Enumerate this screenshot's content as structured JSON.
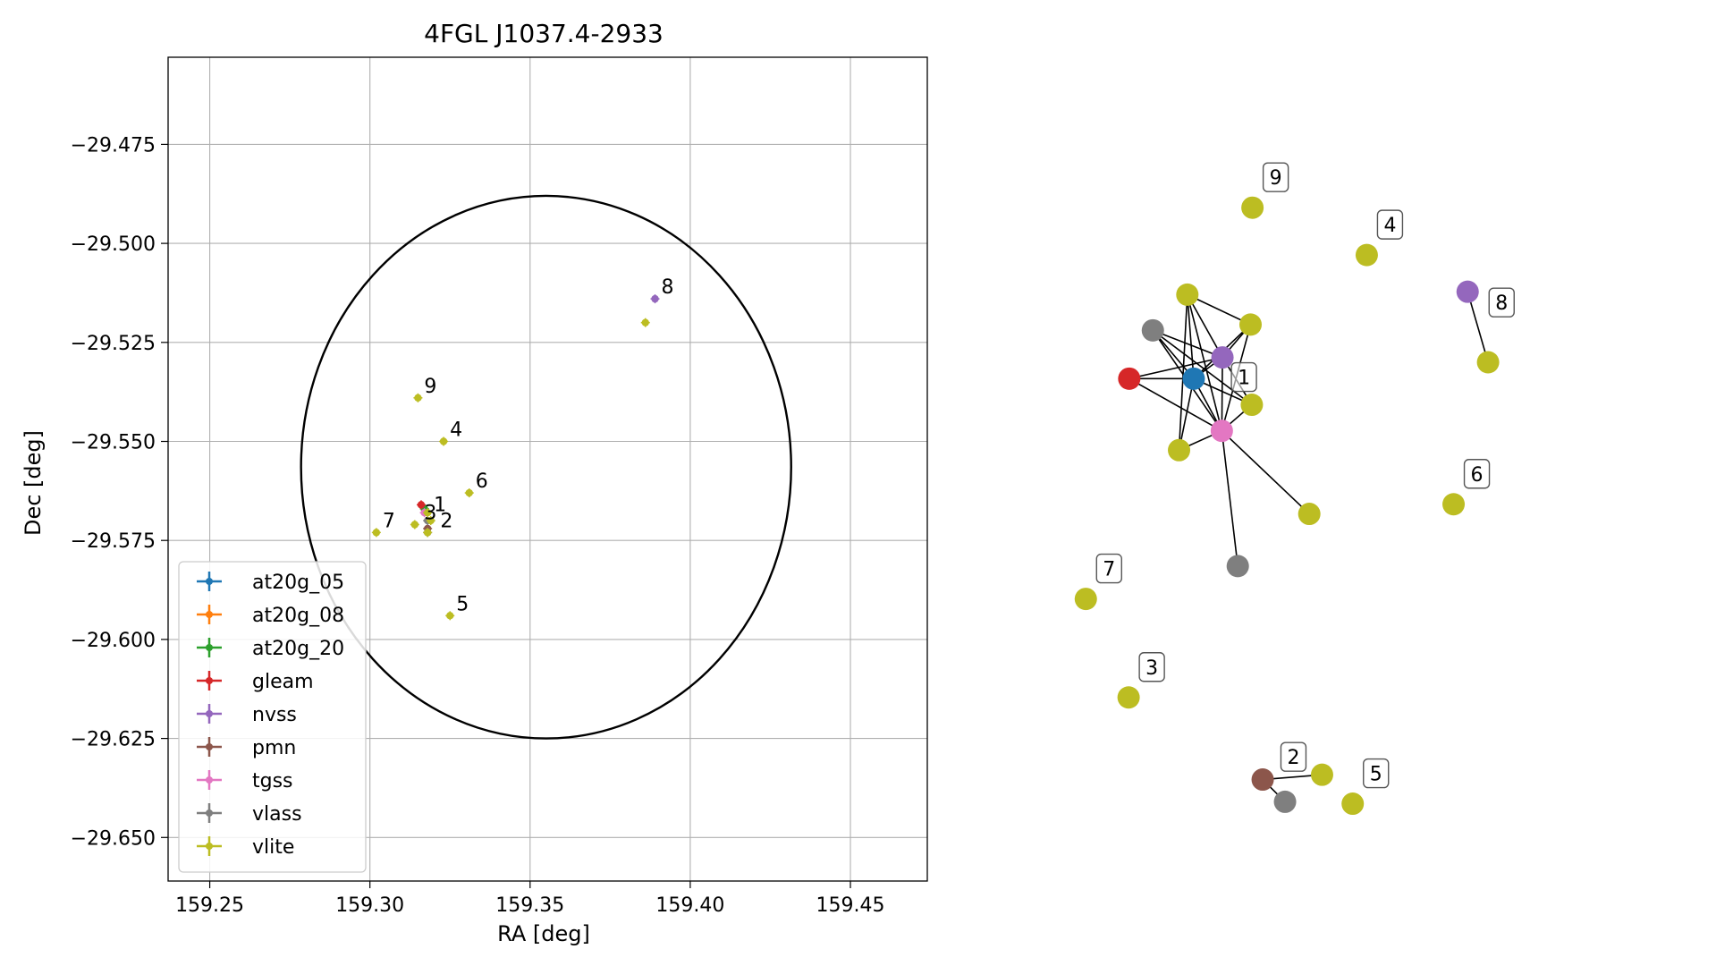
{
  "chart_data": [
    {
      "type": "scatter",
      "title": "4FGL J1037.4-2933",
      "xlabel": "RA [deg]",
      "ylabel": "Dec [deg]",
      "xlim": [
        159.237,
        159.474
      ],
      "ylim": [
        -29.661,
        -29.453
      ],
      "xticks": [
        159.25,
        159.3,
        159.35,
        159.4,
        159.45
      ],
      "xtick_labels": [
        "159.25",
        "159.30",
        "159.35",
        "159.40",
        "159.45"
      ],
      "yticks": [
        -29.475,
        -29.5,
        -29.525,
        -29.55,
        -29.575,
        -29.6,
        -29.625,
        -29.65
      ],
      "ytick_labels": [
        "−29.475",
        "−29.500",
        "−29.525",
        "−29.550",
        "−29.575",
        "−29.600",
        "−29.625",
        "−29.650"
      ],
      "grid": true,
      "legend_position": "lower-left",
      "ellipse": {
        "center": [
          159.355,
          -29.5565
        ],
        "semi_ra": 0.0765,
        "semi_dec": 0.0685
      },
      "series": [
        {
          "name": "at20g_05",
          "color": "#1f77b4",
          "points": [
            [
              159.317,
              -29.567
            ]
          ]
        },
        {
          "name": "at20g_08",
          "color": "#ff7f0e",
          "points": [
            [
              159.317,
              -29.567
            ]
          ]
        },
        {
          "name": "at20g_20",
          "color": "#2ca02c",
          "points": [
            [
              159.317,
              -29.567
            ]
          ]
        },
        {
          "name": "gleam",
          "color": "#d62728",
          "points": [
            [
              159.316,
              -29.566
            ]
          ]
        },
        {
          "name": "nvss",
          "color": "#9467bd",
          "points": [
            [
              159.389,
              -29.514
            ]
          ]
        },
        {
          "name": "pmn",
          "color": "#8c564b",
          "points": [
            [
              159.318,
              -29.572
            ]
          ]
        },
        {
          "name": "tgss",
          "color": "#e377c2",
          "points": [
            [
              159.317,
              -29.568
            ]
          ]
        },
        {
          "name": "vlass",
          "color": "#7f7f7f",
          "points": [
            [
              159.318,
              -29.57
            ],
            [
              159.318,
              -29.573
            ]
          ]
        },
        {
          "name": "vlite",
          "color": "#bcbd22",
          "points": [
            [
              159.318,
              -29.568
            ],
            [
              159.319,
              -29.57
            ],
            [
              159.314,
              -29.571
            ],
            [
              159.323,
              -29.55
            ],
            [
              159.325,
              -29.594
            ],
            [
              159.331,
              -29.563
            ],
            [
              159.302,
              -29.573
            ],
            [
              159.386,
              -29.52
            ],
            [
              159.315,
              -29.539
            ],
            [
              159.318,
              -29.573
            ]
          ]
        }
      ],
      "annotations": [
        {
          "text": "1",
          "x": 159.318,
          "y": -29.569
        },
        {
          "text": "2",
          "x": 159.32,
          "y": -29.573
        },
        {
          "text": "3",
          "x": 159.315,
          "y": -29.571
        },
        {
          "text": "4",
          "x": 159.323,
          "y": -29.55
        },
        {
          "text": "5",
          "x": 159.325,
          "y": -29.594
        },
        {
          "text": "6",
          "x": 159.331,
          "y": -29.563
        },
        {
          "text": "7",
          "x": 159.302,
          "y": -29.573
        },
        {
          "text": "8",
          "x": 159.389,
          "y": -29.514
        },
        {
          "text": "9",
          "x": 159.315,
          "y": -29.539
        }
      ]
    },
    {
      "type": "network",
      "nodes": [
        {
          "id": "c1",
          "color": "#bcbd22",
          "x": 0.172,
          "y": 0.305
        },
        {
          "id": "c2",
          "color": "#7f7f7f",
          "x": 0.118,
          "y": 0.342
        },
        {
          "id": "c3",
          "color": "#9467bd",
          "x": 0.227,
          "y": 0.37
        },
        {
          "id": "c4",
          "color": "#bcbd22",
          "x": 0.271,
          "y": 0.336
        },
        {
          "id": "c5",
          "color": "#d62728",
          "x": 0.081,
          "y": 0.392
        },
        {
          "id": "c6",
          "color": "#1f77b4",
          "x": 0.182,
          "y": 0.392
        },
        {
          "id": "c7",
          "color": "#bcbd22",
          "x": 0.273,
          "y": 0.419
        },
        {
          "id": "c8",
          "color": "#e377c2",
          "x": 0.226,
          "y": 0.446
        },
        {
          "id": "c9",
          "color": "#bcbd22",
          "x": 0.159,
          "y": 0.466
        },
        {
          "id": "c10",
          "color": "#bcbd22",
          "x": 0.363,
          "y": 0.532
        },
        {
          "id": "c11",
          "color": "#7f7f7f",
          "x": 0.251,
          "y": 0.586
        },
        {
          "id": "n9",
          "color": "#bcbd22",
          "x": 0.274,
          "y": 0.215
        },
        {
          "id": "n4",
          "color": "#bcbd22",
          "x": 0.453,
          "y": 0.264
        },
        {
          "id": "n8a",
          "color": "#9467bd",
          "x": 0.611,
          "y": 0.302
        },
        {
          "id": "n8b",
          "color": "#bcbd22",
          "x": 0.643,
          "y": 0.375
        },
        {
          "id": "n6",
          "color": "#bcbd22",
          "x": 0.589,
          "y": 0.522
        },
        {
          "id": "n7",
          "color": "#bcbd22",
          "x": 0.013,
          "y": 0.62
        },
        {
          "id": "n3",
          "color": "#bcbd22",
          "x": 0.08,
          "y": 0.722
        },
        {
          "id": "n2a",
          "color": "#8c564b",
          "x": 0.29,
          "y": 0.807
        },
        {
          "id": "n2b",
          "color": "#7f7f7f",
          "x": 0.325,
          "y": 0.83
        },
        {
          "id": "n2c",
          "color": "#bcbd22",
          "x": 0.383,
          "y": 0.802
        },
        {
          "id": "n5",
          "color": "#bcbd22",
          "x": 0.431,
          "y": 0.832
        }
      ],
      "edges": [
        [
          "c1",
          "c3"
        ],
        [
          "c1",
          "c6"
        ],
        [
          "c1",
          "c8"
        ],
        [
          "c1",
          "c9"
        ],
        [
          "c1",
          "c4"
        ],
        [
          "c2",
          "c6"
        ],
        [
          "c2",
          "c8"
        ],
        [
          "c2",
          "c3"
        ],
        [
          "c2",
          "c7"
        ],
        [
          "c3",
          "c6"
        ],
        [
          "c3",
          "c8"
        ],
        [
          "c3",
          "c4"
        ],
        [
          "c3",
          "c7"
        ],
        [
          "c3",
          "c5"
        ],
        [
          "c4",
          "c8"
        ],
        [
          "c4",
          "c6"
        ],
        [
          "c5",
          "c6"
        ],
        [
          "c5",
          "c8"
        ],
        [
          "c6",
          "c8"
        ],
        [
          "c6",
          "c9"
        ],
        [
          "c6",
          "c7"
        ],
        [
          "c7",
          "c8"
        ],
        [
          "c8",
          "c9"
        ],
        [
          "c8",
          "c10"
        ],
        [
          "c8",
          "c11"
        ],
        [
          "n8a",
          "n8b"
        ],
        [
          "n2a",
          "n2b"
        ],
        [
          "n2a",
          "n2c"
        ]
      ],
      "labels": [
        {
          "text": "9",
          "node": "n9"
        },
        {
          "text": "4",
          "node": "n4"
        },
        {
          "text": "8",
          "node": "n8a",
          "offset": "right"
        },
        {
          "text": "1",
          "node": "c3",
          "offset": "below-right"
        },
        {
          "text": "6",
          "node": "n6"
        },
        {
          "text": "7",
          "node": "n7"
        },
        {
          "text": "3",
          "node": "n3"
        },
        {
          "text": "2",
          "node": "n2c",
          "offset": "left"
        },
        {
          "text": "5",
          "node": "n5"
        }
      ]
    }
  ]
}
